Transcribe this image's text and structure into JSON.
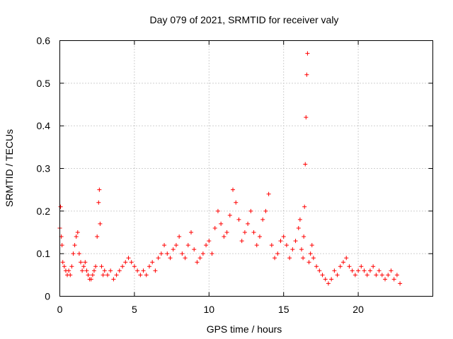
{
  "chart_data": {
    "type": "scatter",
    "title": "Day 079 of 2021, SRMTID for receiver valy",
    "xlabel": "GPS time / hours",
    "ylabel": "SRMTID / TECUs",
    "xlim": [
      0,
      25
    ],
    "ylim": [
      0,
      0.6
    ],
    "xticks": [
      0,
      5,
      10,
      15,
      20
    ],
    "yticks": [
      0,
      0.1,
      0.2,
      0.3,
      0.4,
      0.5,
      0.6
    ],
    "xtick_labels": [
      "0",
      "5",
      "10",
      "15",
      "20"
    ],
    "ytick_labels": [
      "0",
      "0.1",
      "0.2",
      "0.3",
      "0.4",
      "0.5",
      "0.6"
    ],
    "grid": true,
    "marker": "+",
    "color": "#ff0000",
    "series": [
      {
        "name": "SRMTID",
        "x": [
          0.0,
          0.05,
          0.1,
          0.15,
          0.2,
          0.3,
          0.4,
          0.5,
          0.6,
          0.7,
          0.8,
          0.9,
          1.0,
          1.1,
          1.2,
          1.3,
          1.4,
          1.5,
          1.6,
          1.7,
          1.8,
          1.9,
          2.0,
          2.1,
          2.2,
          2.3,
          2.4,
          2.5,
          2.6,
          2.65,
          2.7,
          2.8,
          2.9,
          3.0,
          3.2,
          3.4,
          3.6,
          3.8,
          4.0,
          4.2,
          4.4,
          4.6,
          4.8,
          5.0,
          5.2,
          5.4,
          5.6,
          5.8,
          6.0,
          6.2,
          6.4,
          6.6,
          6.8,
          7.0,
          7.2,
          7.4,
          7.6,
          7.8,
          8.0,
          8.2,
          8.4,
          8.6,
          8.8,
          9.0,
          9.2,
          9.4,
          9.6,
          9.8,
          10.0,
          10.2,
          10.4,
          10.6,
          10.8,
          11.0,
          11.2,
          11.4,
          11.6,
          11.8,
          12.0,
          12.2,
          12.4,
          12.6,
          12.8,
          13.0,
          13.2,
          13.4,
          13.6,
          13.8,
          14.0,
          14.2,
          14.4,
          14.6,
          14.8,
          15.0,
          15.2,
          15.4,
          15.6,
          15.8,
          16.0,
          16.1,
          16.2,
          16.3,
          16.35,
          16.4,
          16.45,
          16.5,
          16.55,
          16.6,
          16.7,
          16.8,
          16.9,
          17.0,
          17.2,
          17.4,
          17.6,
          17.8,
          18.0,
          18.2,
          18.4,
          18.6,
          18.8,
          19.0,
          19.2,
          19.4,
          19.6,
          19.8,
          20.0,
          20.2,
          20.4,
          20.6,
          20.8,
          21.0,
          21.2,
          21.4,
          21.6,
          21.8,
          22.0,
          22.2,
          22.4,
          22.6,
          22.8
        ],
        "y": [
          0.16,
          0.21,
          0.14,
          0.12,
          0.08,
          0.07,
          0.06,
          0.05,
          0.06,
          0.05,
          0.07,
          0.1,
          0.12,
          0.14,
          0.15,
          0.1,
          0.08,
          0.06,
          0.07,
          0.08,
          0.06,
          0.05,
          0.04,
          0.04,
          0.05,
          0.06,
          0.07,
          0.14,
          0.22,
          0.25,
          0.17,
          0.07,
          0.05,
          0.06,
          0.05,
          0.06,
          0.04,
          0.05,
          0.06,
          0.07,
          0.08,
          0.09,
          0.08,
          0.07,
          0.06,
          0.05,
          0.06,
          0.05,
          0.07,
          0.08,
          0.06,
          0.09,
          0.1,
          0.12,
          0.1,
          0.09,
          0.11,
          0.12,
          0.14,
          0.1,
          0.09,
          0.12,
          0.15,
          0.11,
          0.08,
          0.09,
          0.1,
          0.12,
          0.13,
          0.1,
          0.16,
          0.2,
          0.17,
          0.14,
          0.15,
          0.19,
          0.25,
          0.22,
          0.18,
          0.13,
          0.15,
          0.17,
          0.2,
          0.15,
          0.12,
          0.14,
          0.18,
          0.2,
          0.24,
          0.12,
          0.09,
          0.1,
          0.13,
          0.14,
          0.12,
          0.09,
          0.11,
          0.13,
          0.16,
          0.18,
          0.11,
          0.09,
          0.14,
          0.21,
          0.31,
          0.42,
          0.52,
          0.57,
          0.08,
          0.1,
          0.12,
          0.09,
          0.07,
          0.06,
          0.05,
          0.04,
          0.03,
          0.04,
          0.06,
          0.05,
          0.07,
          0.08,
          0.09,
          0.07,
          0.06,
          0.05,
          0.06,
          0.07,
          0.06,
          0.05,
          0.06,
          0.07,
          0.05,
          0.06,
          0.05,
          0.04,
          0.05,
          0.06,
          0.04,
          0.05,
          0.03
        ]
      }
    ]
  }
}
